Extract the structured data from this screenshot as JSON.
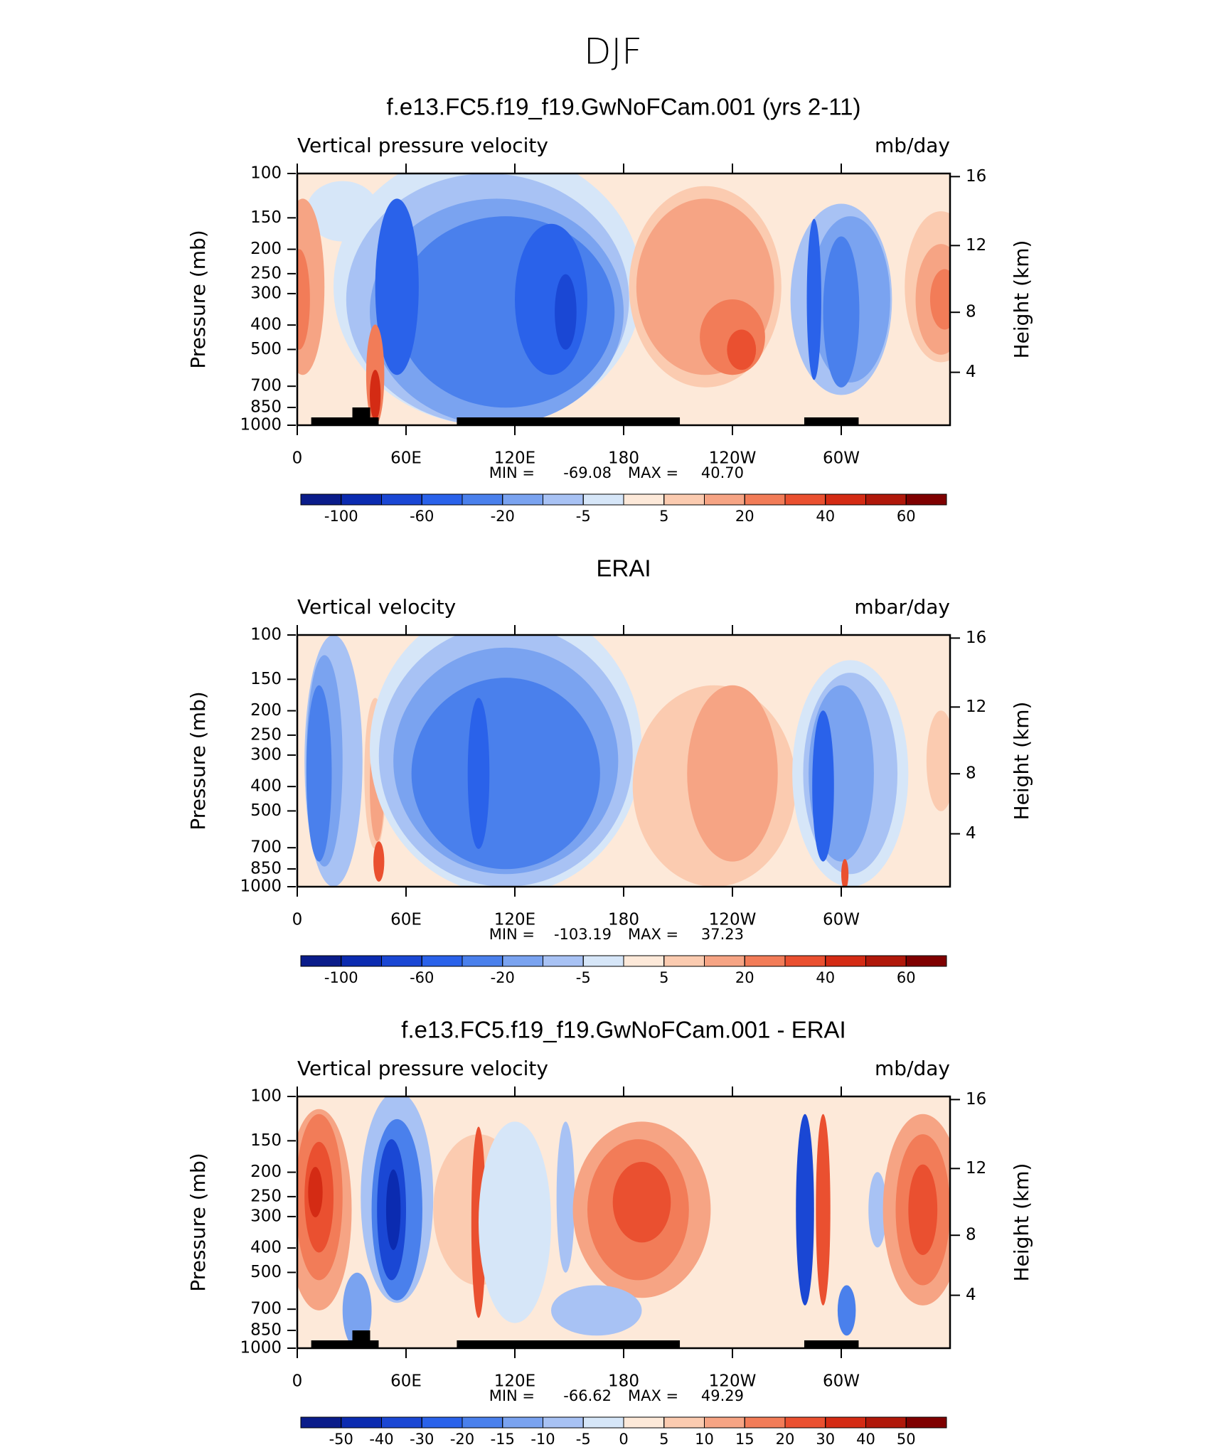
{
  "title": "DJF",
  "chart_data": [
    {
      "type": "contour",
      "title": "f.e13.FC5.f19_f19.GwNoFCam.001 (yrs 2-11)",
      "subtitle_left": "Vertical pressure velocity",
      "subtitle_right": "mb/day",
      "ylabel": "Pressure (mb)",
      "y2label": "Height (km)",
      "log_y": true,
      "ylim": [
        1000,
        100
      ],
      "yticks": [
        100,
        150,
        200,
        250,
        300,
        400,
        500,
        700,
        850,
        1000
      ],
      "y2lim": [
        0.11,
        16.18
      ],
      "y2ticks": [
        4,
        8,
        12,
        16
      ],
      "xlim": [
        0,
        360
      ],
      "xticks": [
        0,
        {
          "value": 60,
          "label": "60E"
        },
        {
          "value": 120,
          "label": "120E"
        },
        180,
        {
          "value": 240,
          "label": "120W"
        },
        {
          "value": 300,
          "label": "60W"
        }
      ],
      "stats": {
        "min_label": "MIN =",
        "min": -69.08,
        "max_label": "MAX =",
        "max": {
          "value": 40.7,
          "label": "40.70"
        }
      },
      "colorbar": {
        "colors": [
          "#0a1c8a",
          "#0b2bb0",
          "#1a47d4",
          "#2a62ea",
          "#4a80ec",
          "#7aa3f0",
          "#a8c2f4",
          "#d6e6f8",
          "#fde9d9",
          "#fbcbb0",
          "#f6a484",
          "#f27c58",
          "#ea5030",
          "#d42b14",
          "#b0180a",
          "#7f0000"
        ],
        "levels": [
          -100,
          null,
          -60,
          null,
          -20,
          null,
          -5,
          null,
          5,
          null,
          20,
          null,
          40,
          null,
          60
        ]
      }
    },
    {
      "type": "contour",
      "title": "ERAI",
      "subtitle_left": "Vertical velocity",
      "subtitle_right": "mbar/day",
      "ylabel": "Pressure (mb)",
      "y2label": "Height (km)",
      "log_y": true,
      "ylim": [
        1000,
        100
      ],
      "yticks": [
        100,
        150,
        200,
        250,
        300,
        400,
        500,
        700,
        850,
        1000
      ],
      "y2lim": [
        0.11,
        16.18
      ],
      "y2ticks": [
        4,
        8,
        12,
        16
      ],
      "xlim": [
        0,
        360
      ],
      "xticks": [
        0,
        {
          "value": 60,
          "label": "60E"
        },
        {
          "value": 120,
          "label": "120E"
        },
        180,
        {
          "value": 240,
          "label": "120W"
        },
        {
          "value": 300,
          "label": "60W"
        }
      ],
      "stats": {
        "min_label": "MIN =",
        "min": -103.19,
        "max_label": "MAX =",
        "max": 37.23
      },
      "colorbar": {
        "colors": [
          "#0a1c8a",
          "#0b2bb0",
          "#1a47d4",
          "#2a62ea",
          "#4a80ec",
          "#7aa3f0",
          "#a8c2f4",
          "#d6e6f8",
          "#fde9d9",
          "#fbcbb0",
          "#f6a484",
          "#f27c58",
          "#ea5030",
          "#d42b14",
          "#b0180a",
          "#7f0000"
        ],
        "levels": [
          -100,
          null,
          -60,
          null,
          -20,
          null,
          -5,
          null,
          5,
          null,
          20,
          null,
          40,
          null,
          60
        ]
      }
    },
    {
      "type": "contour",
      "title": "f.e13.FC5.f19_f19.GwNoFCam.001 - ERAI",
      "subtitle_left": "Vertical pressure velocity",
      "subtitle_right": "mb/day",
      "ylabel": "Pressure (mb)",
      "y2label": "Height (km)",
      "log_y": true,
      "ylim": [
        1000,
        100
      ],
      "yticks": [
        100,
        150,
        200,
        250,
        300,
        400,
        500,
        700,
        850,
        1000
      ],
      "y2lim": [
        0.11,
        16.18
      ],
      "y2ticks": [
        4,
        8,
        12,
        16
      ],
      "xlim": [
        0,
        360
      ],
      "xticks": [
        0,
        {
          "value": 60,
          "label": "60E"
        },
        {
          "value": 120,
          "label": "120E"
        },
        180,
        {
          "value": 240,
          "label": "120W"
        },
        {
          "value": 300,
          "label": "60W"
        }
      ],
      "stats": {
        "min_label": "MIN =",
        "min": -66.62,
        "max_label": "MAX =",
        "max": 49.29
      },
      "colorbar": {
        "colors": [
          "#0a1c8a",
          "#0b2bb0",
          "#1a47d4",
          "#2a62ea",
          "#4a80ec",
          "#7aa3f0",
          "#a8c2f4",
          "#d6e6f8",
          "#fde9d9",
          "#fbcbb0",
          "#f6a484",
          "#f27c58",
          "#ea5030",
          "#d42b14",
          "#b0180a",
          "#7f0000"
        ],
        "levels": [
          -50,
          -40,
          -30,
          -20,
          -15,
          -10,
          -5,
          0,
          5,
          10,
          15,
          20,
          30,
          40,
          50
        ]
      }
    }
  ]
}
